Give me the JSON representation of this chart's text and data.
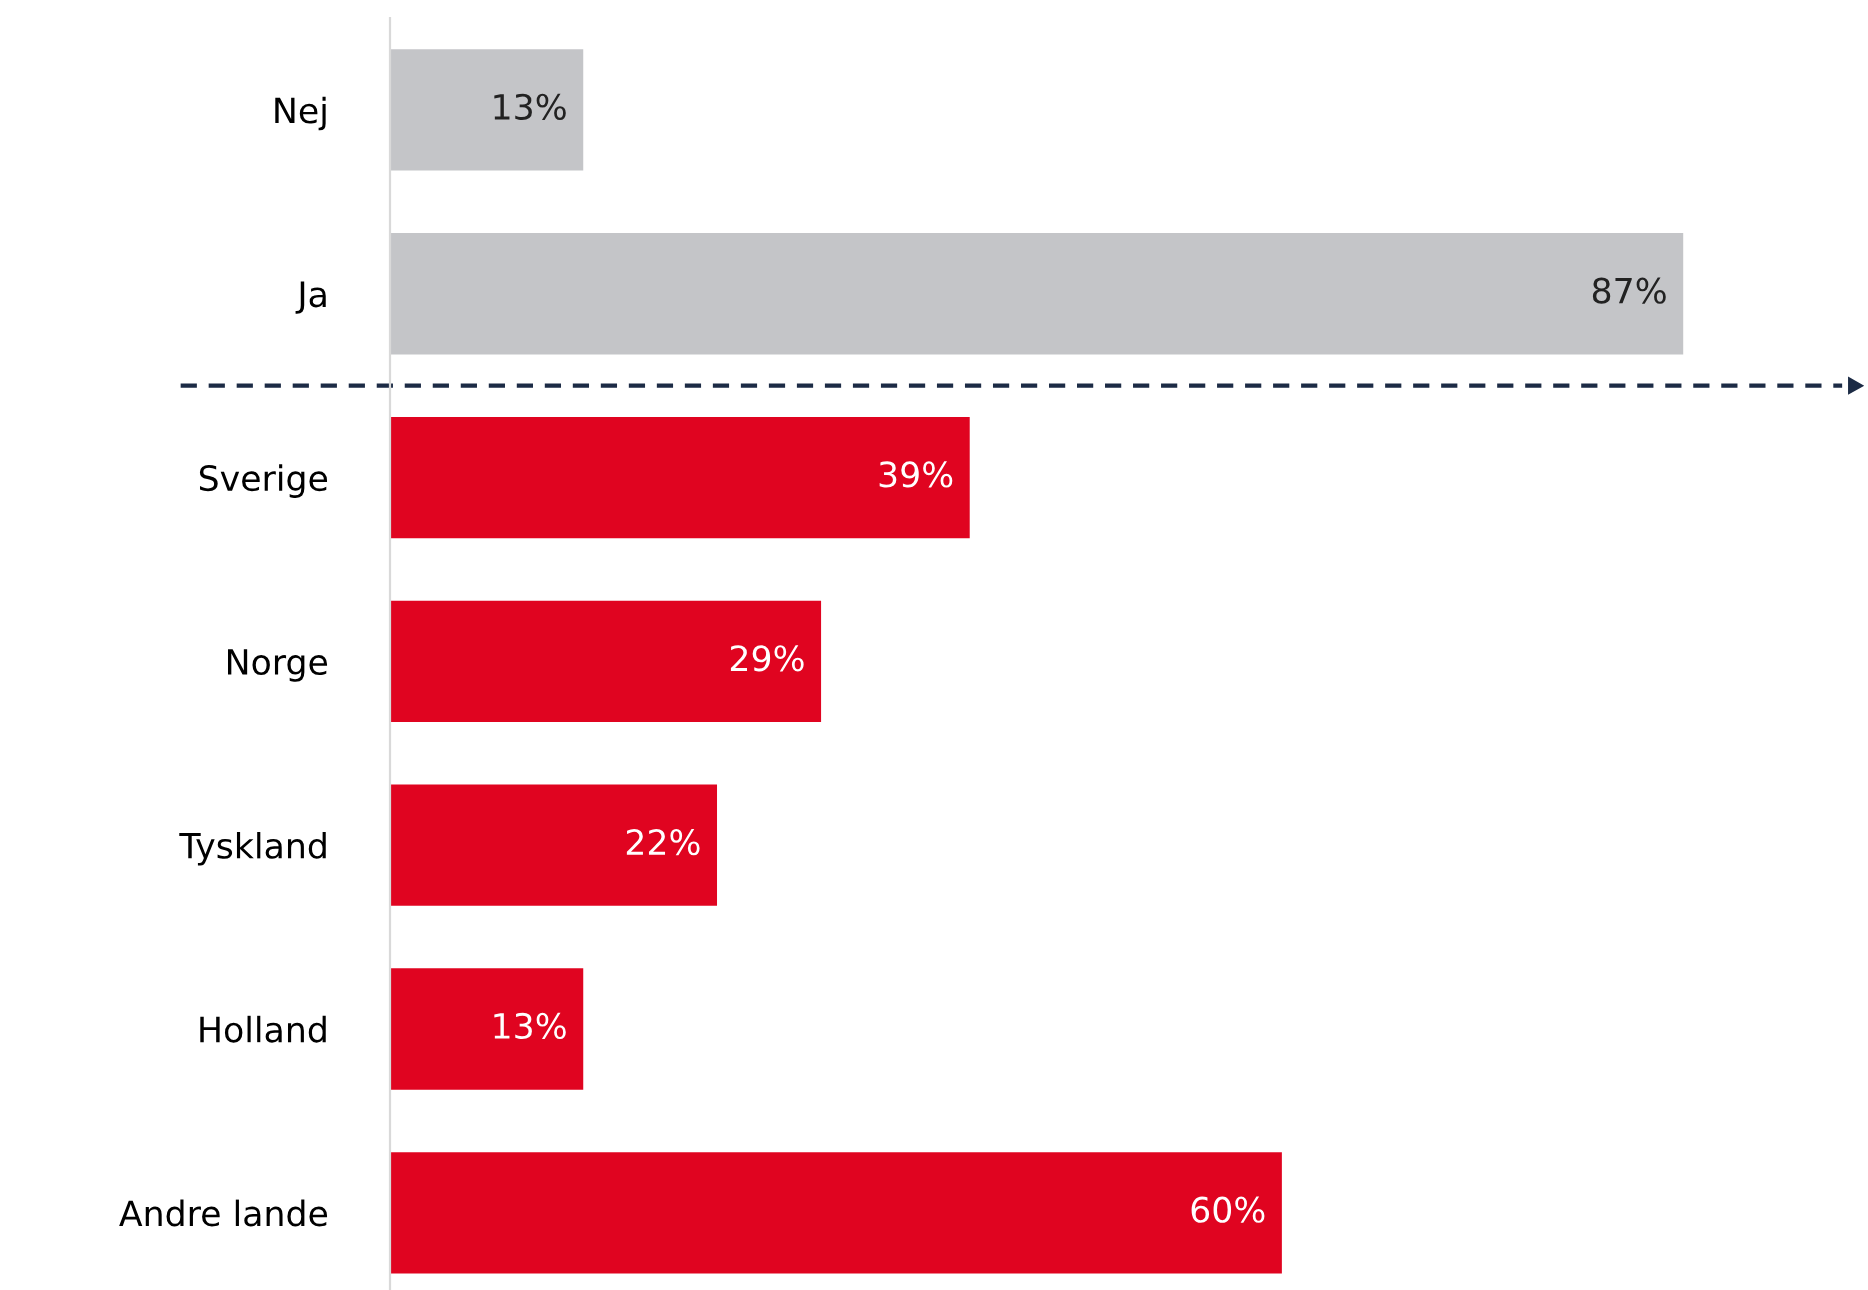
{
  "chart_data": {
    "type": "bar",
    "orientation": "horizontal",
    "categories": [
      "Nej",
      "Ja",
      "Sverige",
      "Norge",
      "Tyskland",
      "Holland",
      "Andre lande"
    ],
    "values": [
      13,
      87,
      39,
      29,
      22,
      13,
      60
    ],
    "colors": [
      "#c4c5c8",
      "#c4c5c8",
      "#e00420",
      "#e00420",
      "#e00420",
      "#e00420",
      "#e00420"
    ],
    "value_labels": [
      "13%",
      "87%",
      "39%",
      "29%",
      "22%",
      "13%",
      "60%"
    ],
    "grid": false,
    "legend": false
  }
}
